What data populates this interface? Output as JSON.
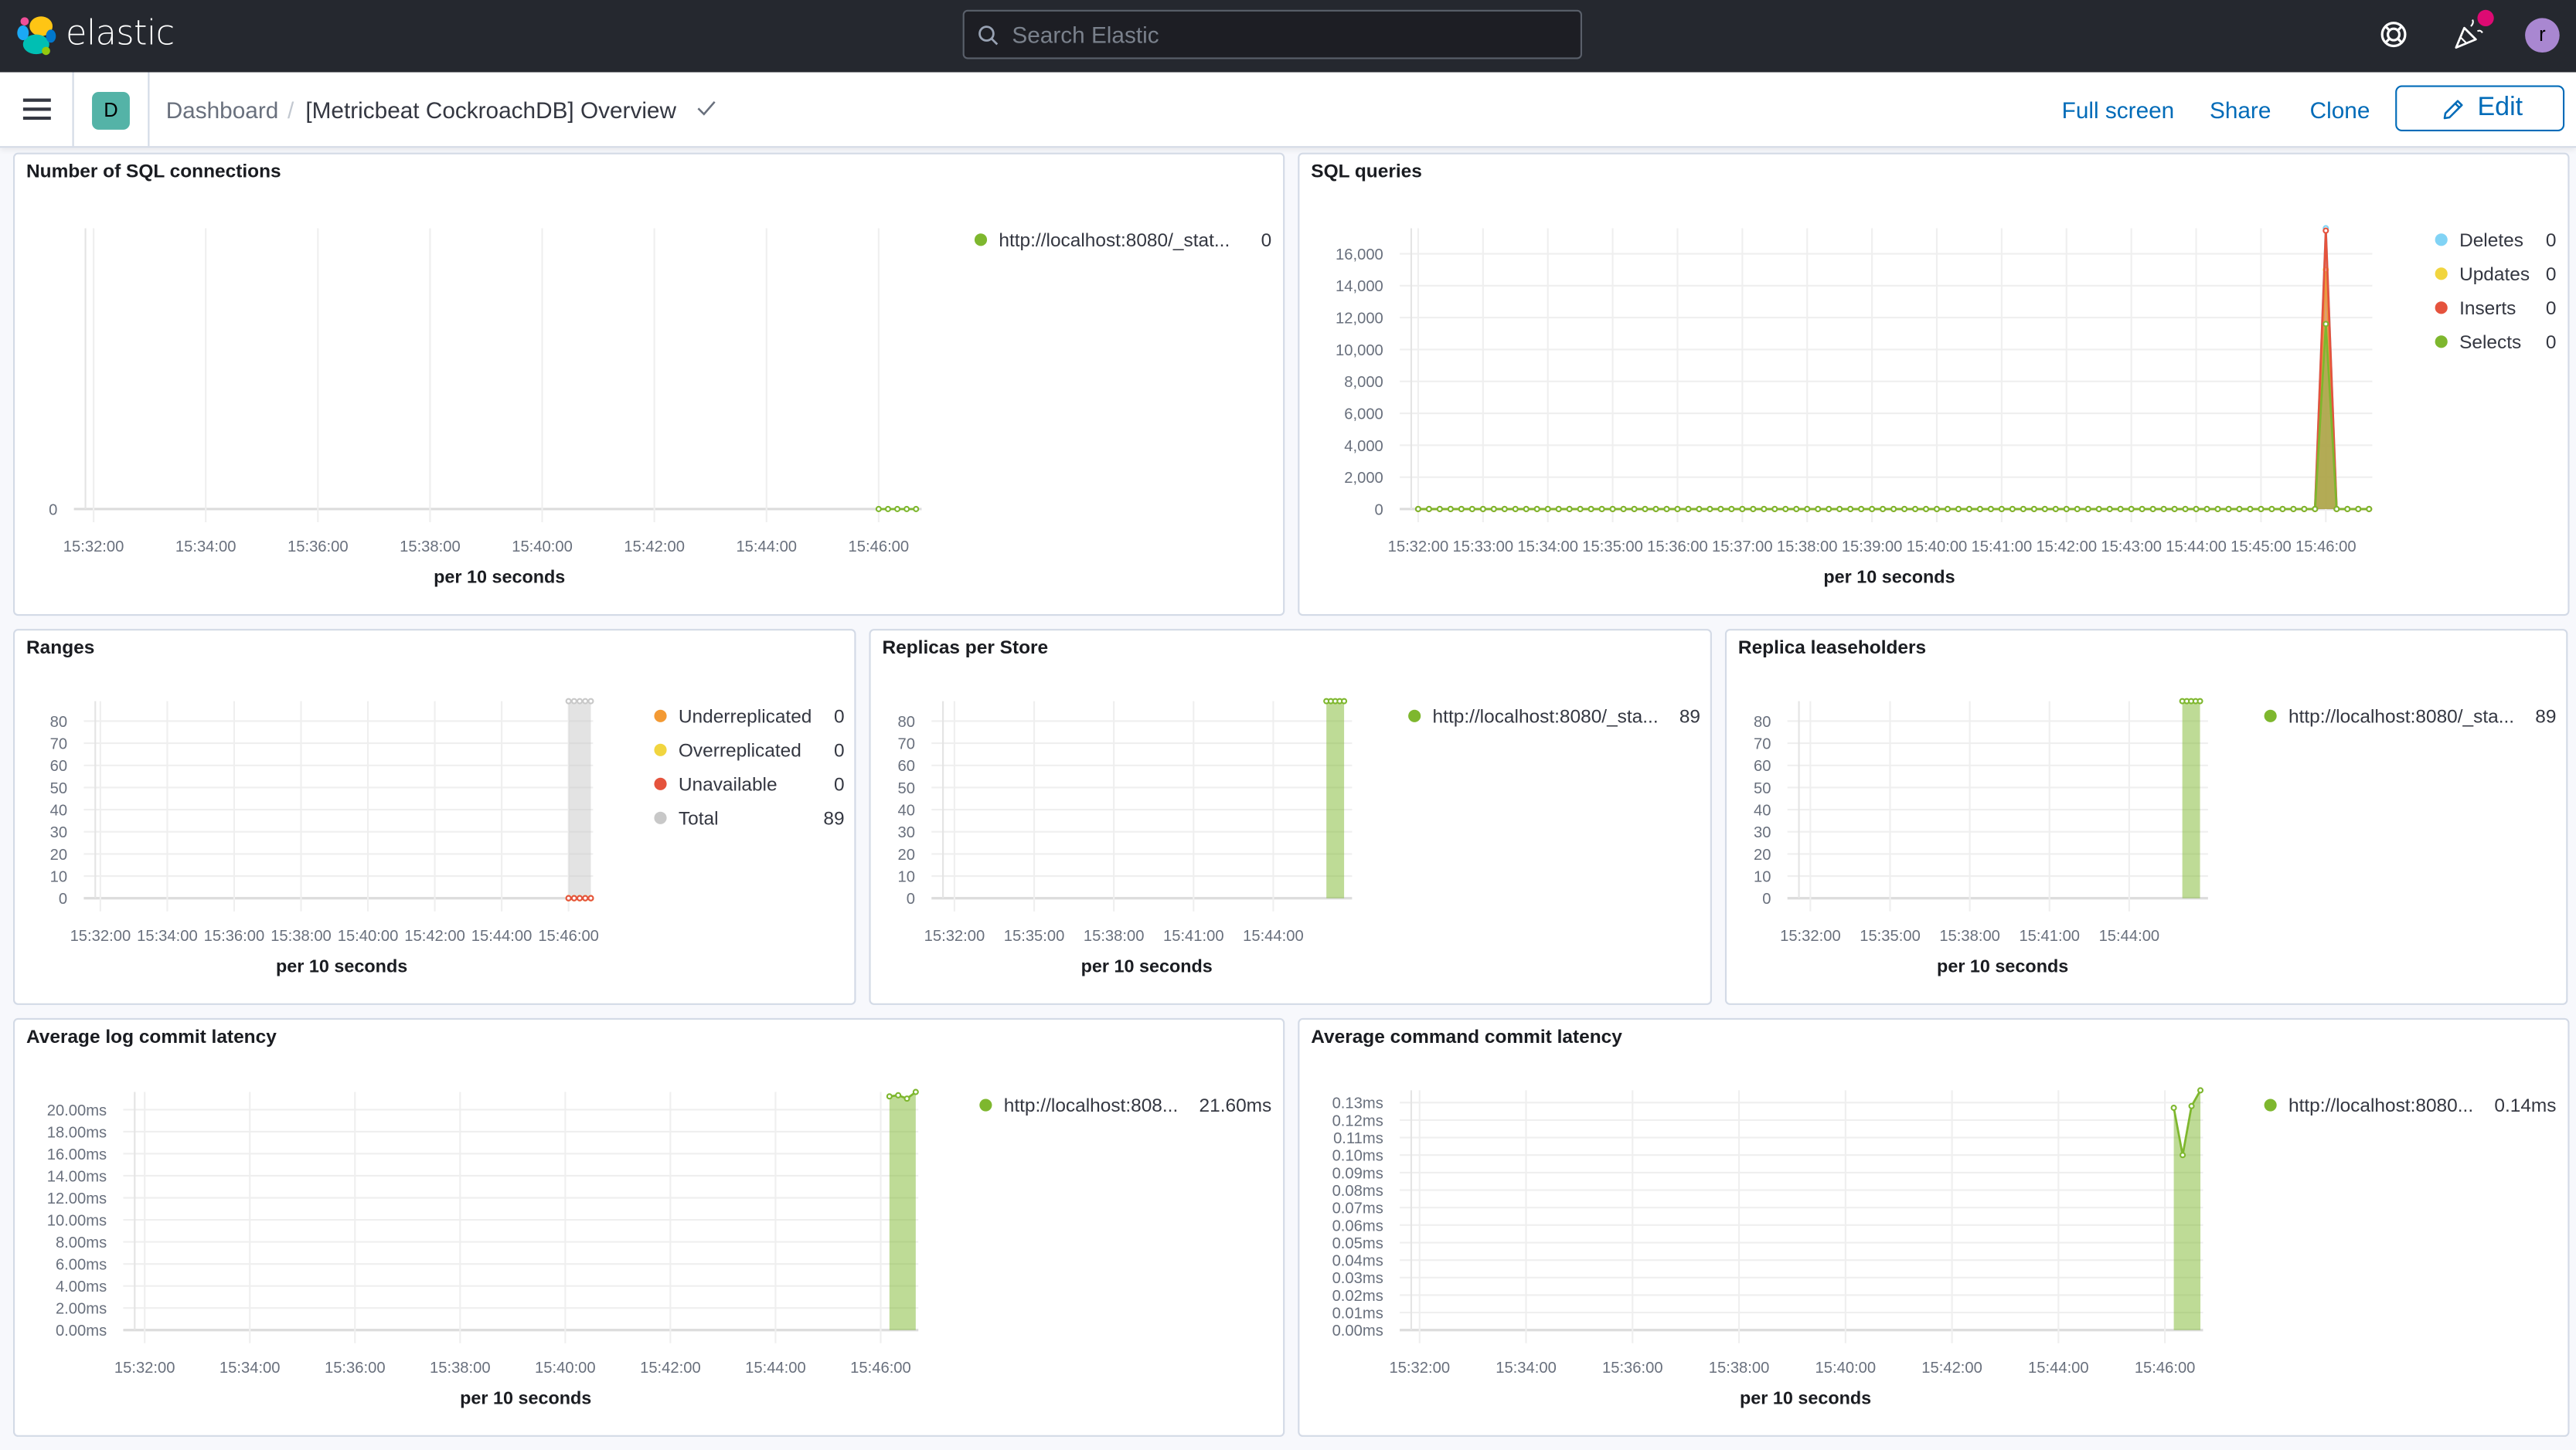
{
  "header": {
    "brand": "elastic",
    "search_placeholder": "Search Elastic",
    "icons": [
      "help-lifebuoy-icon",
      "newsfeed-icon",
      "user-avatar"
    ],
    "avatar_initial": "r",
    "notification_color": "#dd0a73",
    "avatar_color": "#a987d1"
  },
  "subheader": {
    "space_badge": "D",
    "breadcrumb_root": "Dashboard",
    "breadcrumb_separator": "/",
    "dashboard_title": "[Metricbeat CockroachDB] Overview",
    "actions": {
      "full_screen": "Full screen",
      "share": "Share",
      "clone": "Clone",
      "edit": "Edit"
    },
    "accent_color": "#006bb8"
  },
  "panels": [
    {
      "title": "Number of SQL connections"
    },
    {
      "title": "SQL queries"
    },
    {
      "title": "Ranges"
    },
    {
      "title": "Replicas per Store"
    },
    {
      "title": "Replica leaseholders"
    },
    {
      "title": "Average log commit latency"
    },
    {
      "title": "Average command commit latency"
    }
  ],
  "chart_data": [
    {
      "type": "line",
      "xlabel": "per 10 seconds",
      "ylabel": "",
      "xlim": [
        "15:31:46",
        "15:46:46"
      ],
      "ylim": [
        0,
        1
      ],
      "xticks": [
        "15:32:00",
        "15:34:00",
        "15:36:00",
        "15:38:00",
        "15:40:00",
        "15:42:00",
        "15:44:00",
        "15:46:00"
      ],
      "yticks": [
        {
          "v": 0,
          "label": "0"
        }
      ],
      "legend": "right",
      "series": [
        {
          "name": "http://localhost:8080/_stat...",
          "legend_value": "0",
          "color": "#7eb72e",
          "area": false,
          "start": "15:46:00",
          "interval_seconds": 10,
          "values": [
            0,
            0,
            0,
            0,
            0
          ]
        }
      ]
    },
    {
      "type": "area",
      "xlabel": "per 10 seconds",
      "ylabel": "",
      "xlim": [
        "15:31:49",
        "15:46:43"
      ],
      "ylim": [
        0,
        17600
      ],
      "xticks": [
        "15:32:00",
        "15:33:00",
        "15:34:00",
        "15:35:00",
        "15:36:00",
        "15:37:00",
        "15:38:00",
        "15:39:00",
        "15:40:00",
        "15:41:00",
        "15:42:00",
        "15:43:00",
        "15:44:00",
        "15:45:00",
        "15:46:00"
      ],
      "yticks": [
        {
          "v": 0,
          "label": "0"
        },
        {
          "v": 2000,
          "label": "2,000"
        },
        {
          "v": 4000,
          "label": "4,000"
        },
        {
          "v": 6000,
          "label": "6,000"
        },
        {
          "v": 8000,
          "label": "8,000"
        },
        {
          "v": 10000,
          "label": "10,000"
        },
        {
          "v": 12000,
          "label": "12,000"
        },
        {
          "v": 14000,
          "label": "14,000"
        },
        {
          "v": 16000,
          "label": "16,000"
        }
      ],
      "legend": "right",
      "series": [
        {
          "name": "Deletes",
          "legend_value": "0",
          "color": "#81d3f5",
          "area": true,
          "start": "15:32:00",
          "interval_seconds": 10,
          "values": [
            0,
            0,
            0,
            0,
            0,
            0,
            0,
            0,
            0,
            0,
            0,
            0,
            0,
            0,
            0,
            0,
            0,
            0,
            0,
            0,
            0,
            0,
            0,
            0,
            0,
            0,
            0,
            0,
            0,
            0,
            0,
            0,
            0,
            0,
            0,
            0,
            0,
            0,
            0,
            0,
            0,
            0,
            0,
            0,
            0,
            0,
            0,
            0,
            0,
            0,
            0,
            0,
            0,
            0,
            0,
            0,
            0,
            0,
            0,
            0,
            0,
            0,
            0,
            0,
            0,
            0,
            0,
            0,
            0,
            0,
            0,
            0,
            0,
            0,
            0,
            0,
            0,
            0,
            0,
            0,
            0,
            0,
            0,
            0,
            17600,
            0,
            0,
            0,
            0
          ]
        },
        {
          "name": "Updates",
          "legend_value": "0",
          "color": "#f1d53f",
          "area": true,
          "start": "15:32:00",
          "interval_seconds": 10,
          "values": [
            0,
            0,
            0,
            0,
            0,
            0,
            0,
            0,
            0,
            0,
            0,
            0,
            0,
            0,
            0,
            0,
            0,
            0,
            0,
            0,
            0,
            0,
            0,
            0,
            0,
            0,
            0,
            0,
            0,
            0,
            0,
            0,
            0,
            0,
            0,
            0,
            0,
            0,
            0,
            0,
            0,
            0,
            0,
            0,
            0,
            0,
            0,
            0,
            0,
            0,
            0,
            0,
            0,
            0,
            0,
            0,
            0,
            0,
            0,
            0,
            0,
            0,
            0,
            0,
            0,
            0,
            0,
            0,
            0,
            0,
            0,
            0,
            0,
            0,
            0,
            0,
            0,
            0,
            0,
            0,
            0,
            0,
            0,
            0,
            15000,
            0,
            0,
            0,
            0
          ]
        },
        {
          "name": "Inserts",
          "legend_value": "0",
          "color": "#e5533d",
          "area": true,
          "start": "15:32:00",
          "interval_seconds": 10,
          "values": [
            0,
            0,
            0,
            0,
            0,
            0,
            0,
            0,
            0,
            0,
            0,
            0,
            0,
            0,
            0,
            0,
            0,
            0,
            0,
            0,
            0,
            0,
            0,
            0,
            0,
            0,
            0,
            0,
            0,
            0,
            0,
            0,
            0,
            0,
            0,
            0,
            0,
            0,
            0,
            0,
            0,
            0,
            0,
            0,
            0,
            0,
            0,
            0,
            0,
            0,
            0,
            0,
            0,
            0,
            0,
            0,
            0,
            0,
            0,
            0,
            0,
            0,
            0,
            0,
            0,
            0,
            0,
            0,
            0,
            0,
            0,
            0,
            0,
            0,
            0,
            0,
            0,
            0,
            0,
            0,
            0,
            0,
            0,
            0,
            17450,
            0,
            0,
            0,
            0
          ]
        },
        {
          "name": "Selects",
          "legend_value": "0",
          "color": "#7eb72e",
          "area": true,
          "start": "15:32:00",
          "interval_seconds": 10,
          "values": [
            0,
            0,
            0,
            0,
            0,
            0,
            0,
            0,
            0,
            0,
            0,
            0,
            0,
            0,
            0,
            0,
            0,
            0,
            0,
            0,
            0,
            0,
            0,
            0,
            0,
            0,
            0,
            0,
            0,
            0,
            0,
            0,
            0,
            0,
            0,
            0,
            0,
            0,
            0,
            0,
            0,
            0,
            0,
            0,
            0,
            0,
            0,
            0,
            0,
            0,
            0,
            0,
            0,
            0,
            0,
            0,
            0,
            0,
            0,
            0,
            0,
            0,
            0,
            0,
            0,
            0,
            0,
            0,
            0,
            0,
            0,
            0,
            0,
            0,
            0,
            0,
            0,
            0,
            0,
            0,
            0,
            0,
            0,
            0,
            11600,
            0,
            0,
            0,
            0
          ]
        }
      ]
    },
    {
      "type": "area",
      "xlabel": "per 10 seconds",
      "ylabel": "",
      "xlim": [
        "15:31:42",
        "15:46:44"
      ],
      "ylim": [
        0,
        89
      ],
      "xticks": [
        "15:32:00",
        "15:34:00",
        "15:36:00",
        "15:38:00",
        "15:40:00",
        "15:42:00",
        "15:44:00",
        "15:46:00"
      ],
      "yticks": [
        {
          "v": 0,
          "label": "0"
        },
        {
          "v": 10,
          "label": "10"
        },
        {
          "v": 20,
          "label": "20"
        },
        {
          "v": 30,
          "label": "30"
        },
        {
          "v": 40,
          "label": "40"
        },
        {
          "v": 50,
          "label": "50"
        },
        {
          "v": 60,
          "label": "60"
        },
        {
          "v": 70,
          "label": "70"
        },
        {
          "v": 80,
          "label": "80"
        }
      ],
      "legend": "right",
      "series": [
        {
          "name": "Total",
          "legend_value": "89",
          "color": "#c8c8c8",
          "area": true,
          "start": "15:46:00",
          "interval_seconds": 10,
          "values": [
            89,
            89,
            89,
            89,
            89
          ]
        },
        {
          "name": "Underreplicated",
          "legend_value": "0",
          "color": "#f39a34",
          "area": true,
          "start": "15:46:00",
          "interval_seconds": 10,
          "values": [
            0,
            0,
            0,
            0,
            0
          ]
        },
        {
          "name": "Overreplicated",
          "legend_value": "0",
          "color": "#f1d53f",
          "area": true,
          "start": "15:46:00",
          "interval_seconds": 10,
          "values": [
            0,
            0,
            0,
            0,
            0
          ]
        },
        {
          "name": "Unavailable",
          "legend_value": "0",
          "color": "#e5533d",
          "area": true,
          "start": "15:46:00",
          "interval_seconds": 10,
          "values": [
            0,
            0,
            0,
            0,
            0
          ]
        }
      ],
      "legend_order": [
        "Underreplicated",
        "Overreplicated",
        "Unavailable",
        "Total"
      ]
    },
    {
      "type": "area",
      "xlabel": "per 10 seconds",
      "ylabel": "",
      "xlim": [
        "15:31:23",
        "15:46:58"
      ],
      "ylim": [
        0,
        89
      ],
      "xticks": [
        "15:32:00",
        "15:35:00",
        "15:38:00",
        "15:41:00",
        "15:44:00"
      ],
      "yticks": [
        {
          "v": 0,
          "label": "0"
        },
        {
          "v": 10,
          "label": "10"
        },
        {
          "v": 20,
          "label": "20"
        },
        {
          "v": 30,
          "label": "30"
        },
        {
          "v": 40,
          "label": "40"
        },
        {
          "v": 50,
          "label": "50"
        },
        {
          "v": 60,
          "label": "60"
        },
        {
          "v": 70,
          "label": "70"
        },
        {
          "v": 80,
          "label": "80"
        }
      ],
      "legend": "right",
      "series": [
        {
          "name": "http://localhost:8080/_sta...",
          "legend_value": "89",
          "color": "#7eb72e",
          "area": true,
          "start": "15:46:00",
          "interval_seconds": 10,
          "values": [
            89,
            89,
            89,
            89,
            89
          ]
        }
      ]
    },
    {
      "type": "area",
      "xlabel": "per 10 seconds",
      "ylabel": "",
      "xlim": [
        "15:31:23",
        "15:46:58"
      ],
      "ylim": [
        0,
        89
      ],
      "xticks": [
        "15:32:00",
        "15:35:00",
        "15:38:00",
        "15:41:00",
        "15:44:00"
      ],
      "yticks": [
        {
          "v": 0,
          "label": "0"
        },
        {
          "v": 10,
          "label": "10"
        },
        {
          "v": 20,
          "label": "20"
        },
        {
          "v": 30,
          "label": "30"
        },
        {
          "v": 40,
          "label": "40"
        },
        {
          "v": 50,
          "label": "50"
        },
        {
          "v": 60,
          "label": "60"
        },
        {
          "v": 70,
          "label": "70"
        },
        {
          "v": 80,
          "label": "80"
        }
      ],
      "legend": "right",
      "series": [
        {
          "name": "http://localhost:8080/_sta...",
          "legend_value": "89",
          "color": "#7eb72e",
          "area": true,
          "start": "15:46:00",
          "interval_seconds": 10,
          "values": [
            89,
            89,
            89,
            89,
            89
          ]
        }
      ]
    },
    {
      "type": "area",
      "xlabel": "per 10 seconds",
      "ylabel": "",
      "xlim": [
        "15:31:43",
        "15:46:43"
      ],
      "ylim": [
        0,
        21.6
      ],
      "xticks": [
        "15:32:00",
        "15:34:00",
        "15:36:00",
        "15:38:00",
        "15:40:00",
        "15:42:00",
        "15:44:00",
        "15:46:00"
      ],
      "yticks": [
        {
          "v": 0,
          "label": "0.00ms"
        },
        {
          "v": 2,
          "label": "2.00ms"
        },
        {
          "v": 4,
          "label": "4.00ms"
        },
        {
          "v": 6,
          "label": "6.00ms"
        },
        {
          "v": 8,
          "label": "8.00ms"
        },
        {
          "v": 10,
          "label": "10.00ms"
        },
        {
          "v": 12,
          "label": "12.00ms"
        },
        {
          "v": 14,
          "label": "14.00ms"
        },
        {
          "v": 16,
          "label": "16.00ms"
        },
        {
          "v": 18,
          "label": "18.00ms"
        },
        {
          "v": 20,
          "label": "20.00ms"
        }
      ],
      "legend": "right",
      "series": [
        {
          "name": "http://localhost:808...",
          "legend_value": "21.60ms",
          "color": "#7eb72e",
          "area": true,
          "start": "15:46:10",
          "interval_seconds": 10,
          "values": [
            21.2,
            21.3,
            21.0,
            21.6
          ]
        }
      ]
    },
    {
      "type": "area",
      "xlabel": "per 10 seconds",
      "ylabel": "",
      "xlim": [
        "15:31:45",
        "15:46:43"
      ],
      "ylim": [
        0,
        0.137
      ],
      "xticks": [
        "15:32:00",
        "15:34:00",
        "15:36:00",
        "15:38:00",
        "15:40:00",
        "15:42:00",
        "15:44:00",
        "15:46:00"
      ],
      "yticks": [
        {
          "v": 0,
          "label": "0.00ms"
        },
        {
          "v": 0.01,
          "label": "0.01ms"
        },
        {
          "v": 0.02,
          "label": "0.02ms"
        },
        {
          "v": 0.03,
          "label": "0.03ms"
        },
        {
          "v": 0.04,
          "label": "0.04ms"
        },
        {
          "v": 0.05,
          "label": "0.05ms"
        },
        {
          "v": 0.06,
          "label": "0.06ms"
        },
        {
          "v": 0.07,
          "label": "0.07ms"
        },
        {
          "v": 0.08,
          "label": "0.08ms"
        },
        {
          "v": 0.09,
          "label": "0.09ms"
        },
        {
          "v": 0.1,
          "label": "0.10ms"
        },
        {
          "v": 0.11,
          "label": "0.11ms"
        },
        {
          "v": 0.12,
          "label": "0.12ms"
        },
        {
          "v": 0.13,
          "label": "0.13ms"
        }
      ],
      "legend": "right",
      "series": [
        {
          "name": "http://localhost:8080...",
          "legend_value": "0.14ms",
          "color": "#7eb72e",
          "area": true,
          "start": "15:46:10",
          "interval_seconds": 10,
          "values": [
            0.127,
            0.1,
            0.128,
            0.137
          ]
        }
      ]
    }
  ]
}
